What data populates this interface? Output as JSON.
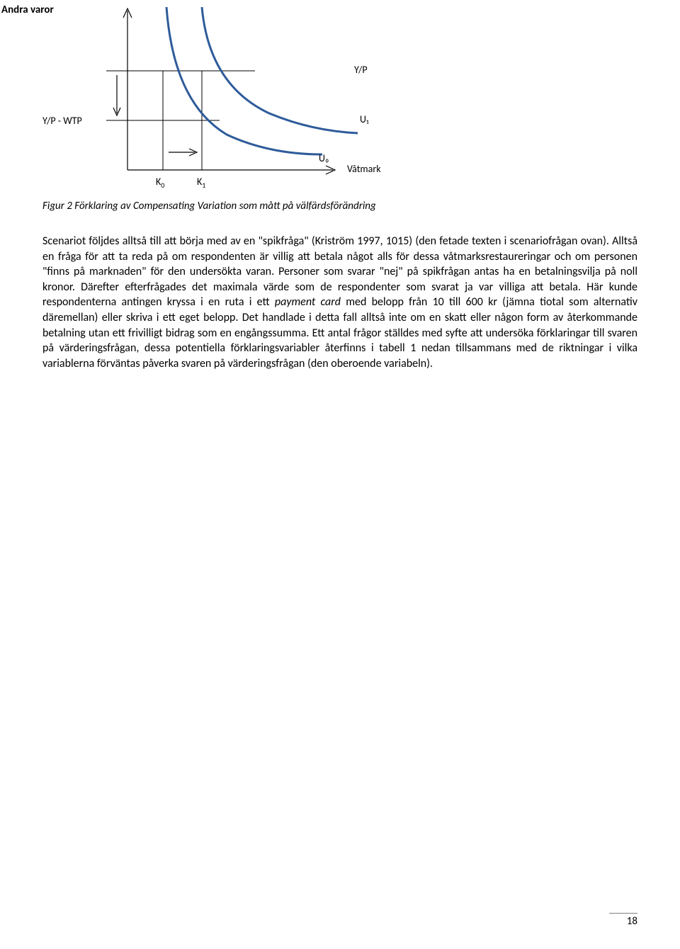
{
  "header": "Andra varor",
  "chart": {
    "type": "indifference-curves",
    "background_color": "#ffffff",
    "axis_color": "#000000",
    "curve_color": "#2e5b9a",
    "curve_width": 3,
    "guide_line_color": "#000000",
    "guide_line_width": 1,
    "yaxis_label_left_top": "Y/P",
    "yaxis_label_left_bottom": "Y/P - WTP",
    "xaxis_label_right": "Våtmark",
    "curve_label_outer": "U₁",
    "curve_label_inner": "U₀",
    "k0_label": "K",
    "k0_sub": "0",
    "k1_label": "K",
    "k1_sub": "1",
    "yp_label_top": "Y/P"
  },
  "caption": "Figur 2 Förklaring av Compensating Variation som mått på välfärdsförändring",
  "body": "Scenariot följdes alltså till att börja med av en \"spikfråga\" (Kriström 1997, 1015) (den fetade texten i scenariofrågan ovan). Alltså en fråga för att ta reda på om respondenten är villig att betala något alls för dessa våtmarksrestaureringar och om personen \"finns på marknaden\" för den undersökta varan. Personer som svarar \"nej\" på spikfrågan antas ha en betalningsvilja på noll kronor. Därefter efterfrågades det maximala värde som de respondenter som svarat ja var villiga att betala. Här kunde respondenterna antingen kryssa i en ruta i ett payment card med belopp från 10 till 600 kr (jämna tiotal som alternativ däremellan) eller skriva i ett eget belopp. Det handlade i detta fall alltså inte om en skatt eller någon form av återkommande betalning utan ett frivilligt bidrag som en engångssumma. Ett antal frågor ställdes med syfte att undersöka förklaringar till svaren på värderingsfrågan, dessa potentiella förklaringsvariabler återfinns i tabell 1 nedan tillsammans med de riktningar i vilka variablerna förväntas påverka svaren på värderingsfrågan (den oberoende variabeln).",
  "page_number": "18"
}
